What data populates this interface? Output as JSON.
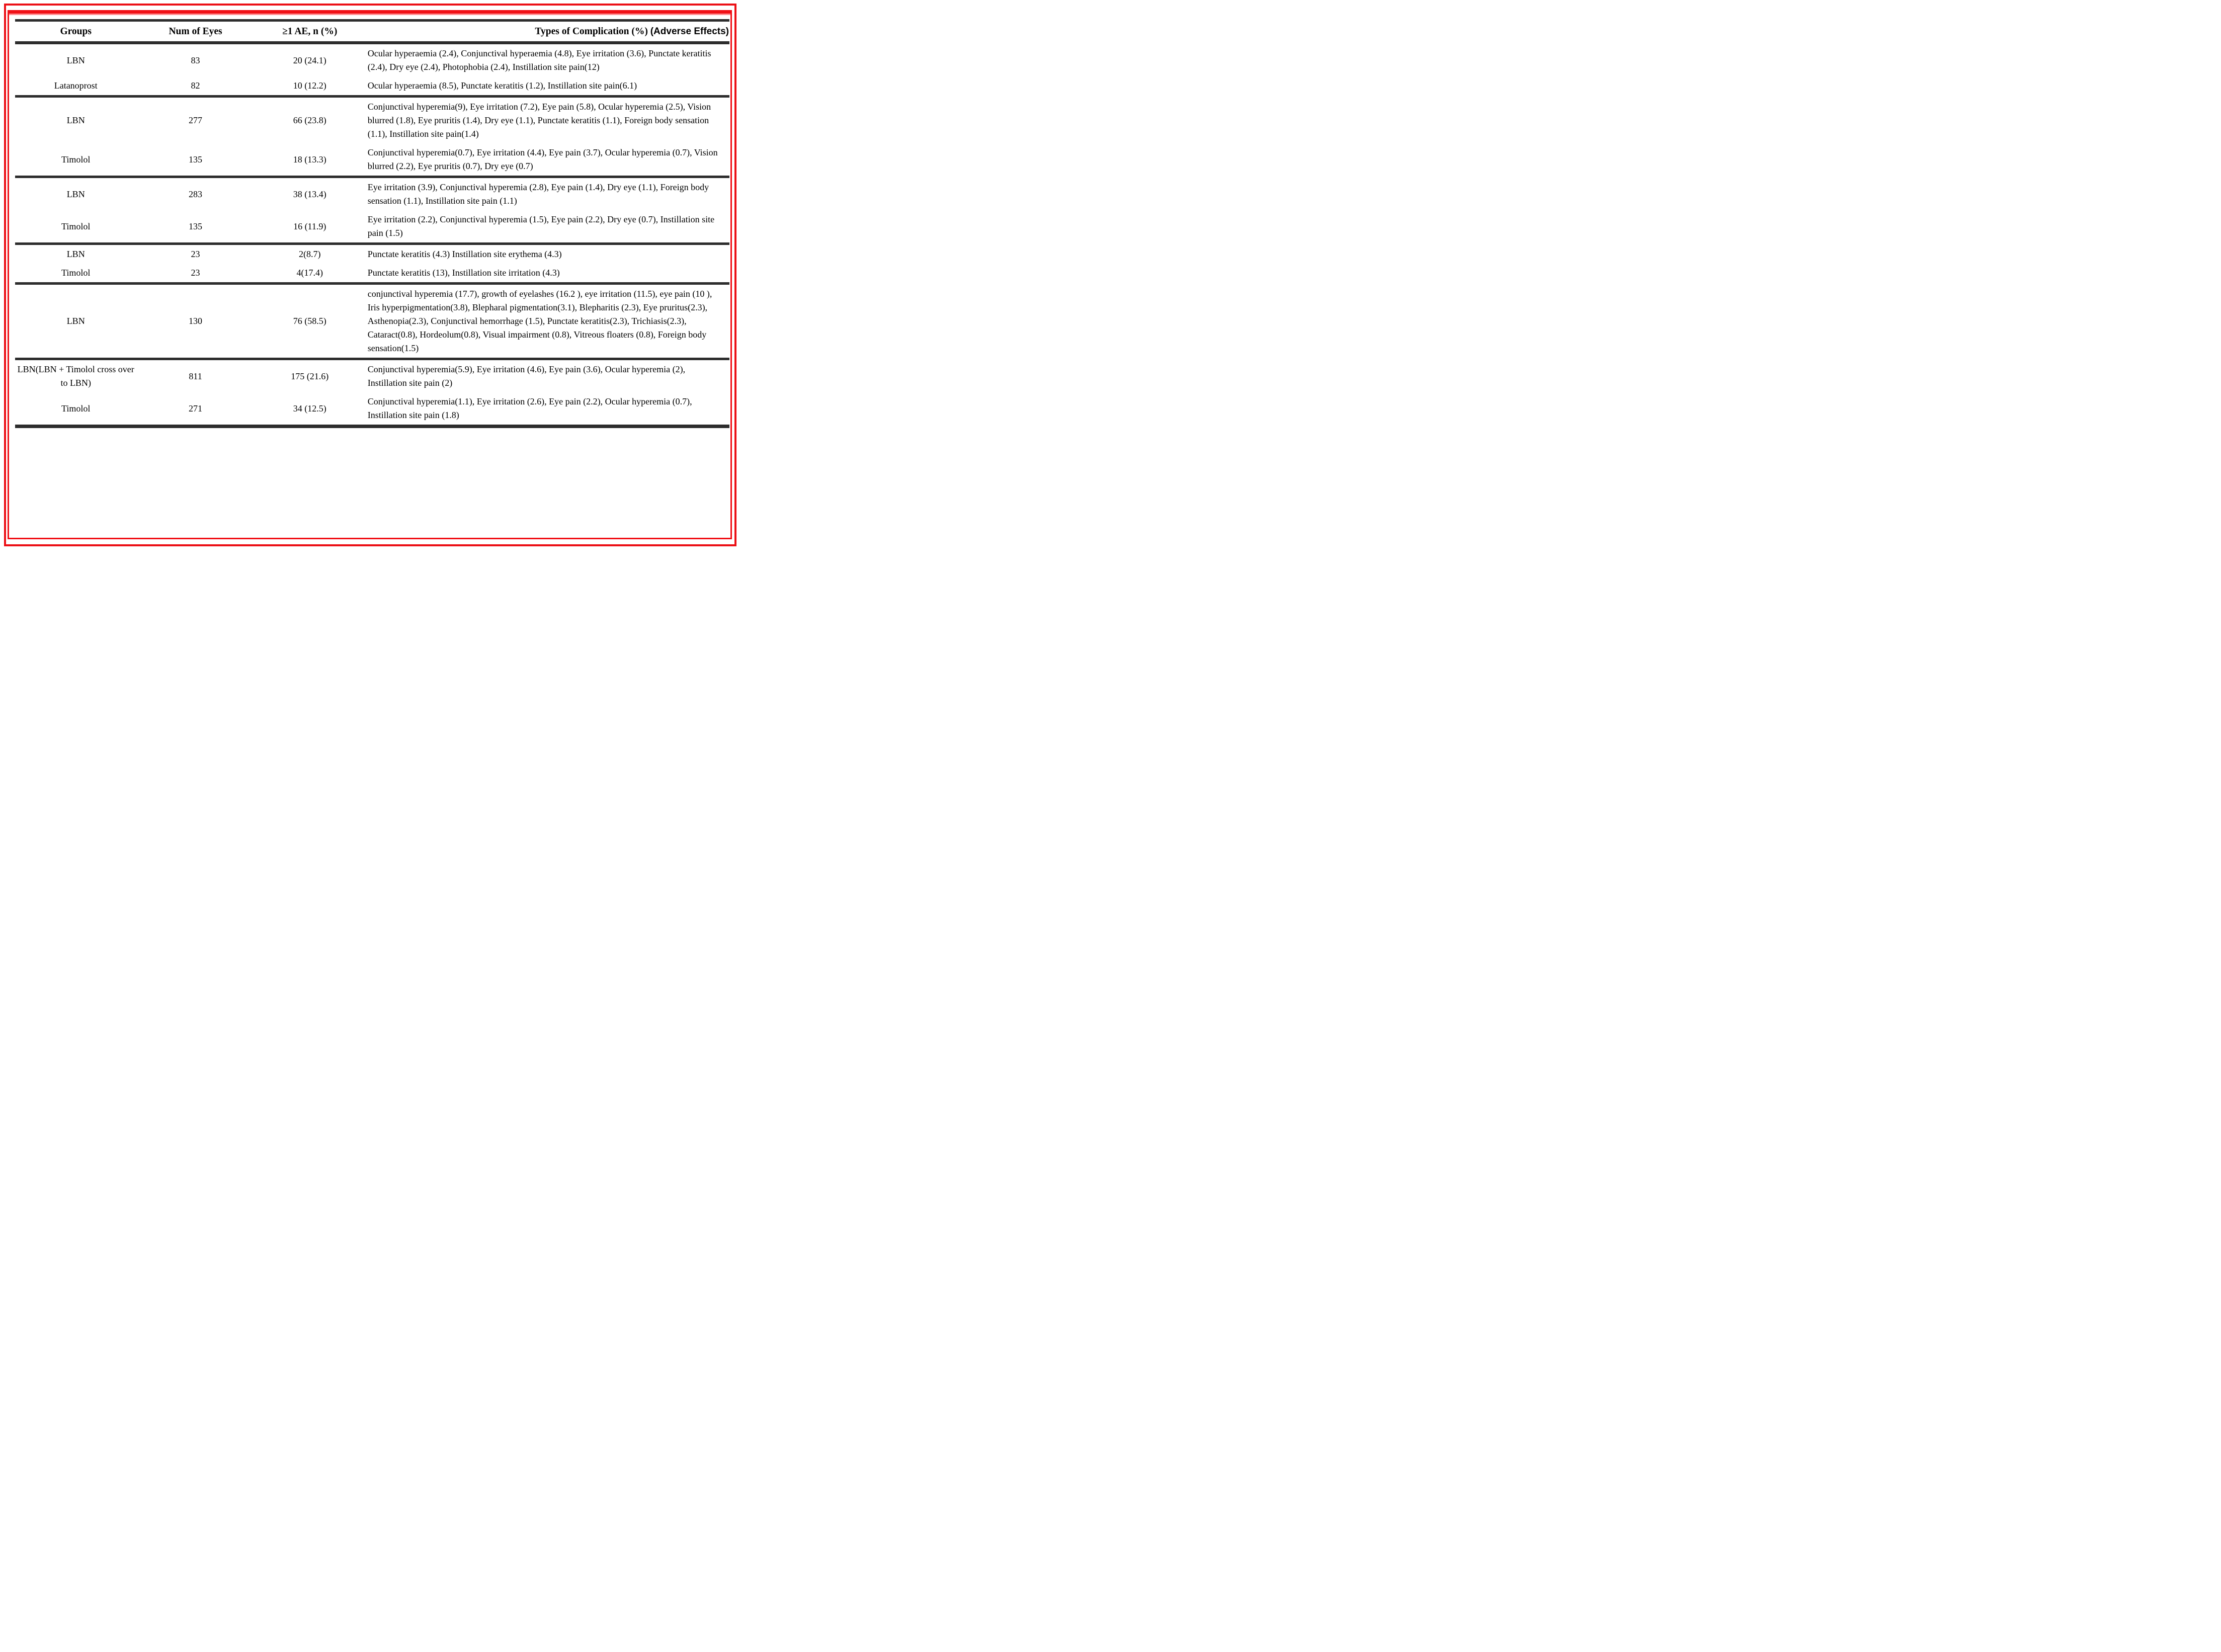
{
  "header": {
    "groups": "Groups",
    "num_of_eyes": "Num of Eyes",
    "ae": "≥1 AE, n (%)",
    "complications": "Types of Complication (%)",
    "complications_annotation": "(Adverse Effects)"
  },
  "accent_colors": {
    "frame_red": "#ec1016",
    "rule_black": "#2d2d2d"
  },
  "sections": [
    {
      "rows": [
        {
          "group": "LBN",
          "eyes": "83",
          "ae": "20 (24.1)",
          "complications": "Ocular hyperaemia (2.4), Conjunctival hyperaemia (4.8), Eye irritation (3.6), Punctate keratitis (2.4), Dry eye (2.4), Photophobia (2.4), Instillation site pain(12)"
        },
        {
          "group": "Latanoprost",
          "eyes": "82",
          "ae": "10 (12.2)",
          "complications": "Ocular hyperaemia (8.5), Punctate keratitis (1.2), Instillation site pain(6.1)"
        }
      ]
    },
    {
      "rows": [
        {
          "group": "LBN",
          "eyes": "277",
          "ae": "66 (23.8)",
          "complications": "Conjunctival hyperemia(9), Eye irritation (7.2), Eye pain (5.8), Ocular hyperemia (2.5), Vision blurred (1.8), Eye pruritis (1.4), Dry eye (1.1), Punctate keratitis (1.1), Foreign body sensation (1.1), Instillation site pain(1.4)"
        },
        {
          "group": "Timolol",
          "eyes": "135",
          "ae": "18 (13.3)",
          "complications": "Conjunctival hyperemia(0.7), Eye irritation (4.4), Eye pain (3.7), Ocular hyperemia (0.7), Vision blurred (2.2), Eye pruritis (0.7), Dry eye (0.7)"
        }
      ]
    },
    {
      "rows": [
        {
          "group": "LBN",
          "eyes": "283",
          "ae": "38 (13.4)",
          "complications": "Eye irritation (3.9), Conjunctival hyperemia (2.8), Eye pain (1.4), Dry eye (1.1), Foreign body sensation (1.1), Instillation site pain (1.1)"
        },
        {
          "group": "Timolol",
          "eyes": "135",
          "ae": "16 (11.9)",
          "complications": "Eye irritation (2.2), Conjunctival hyperemia (1.5), Eye pain (2.2), Dry eye (0.7), Instillation site pain (1.5)"
        }
      ]
    },
    {
      "rows": [
        {
          "group": "LBN",
          "eyes": "23",
          "ae": "2(8.7)",
          "complications": "Punctate keratitis (4.3) Instillation site erythema (4.3)"
        },
        {
          "group": "Timolol",
          "eyes": "23",
          "ae": "4(17.4)",
          "complications": "Punctate keratitis (13), Instillation site irritation (4.3)"
        }
      ]
    },
    {
      "rows": [
        {
          "group": "LBN",
          "eyes": "130",
          "ae": "76 (58.5)",
          "complications": "conjunctival hyperemia (17.7), growth of eyelashes (16.2 ), eye irritation (11.5), eye pain (10 ), Iris hyperpigmentation(3.8), Blepharal pigmentation(3.1), Blepharitis (2.3), Eye pruritus(2.3), Asthenopia(2.3), Conjunctival hemorrhage (1.5), Punctate keratitis(2.3), Trichiasis(2.3), Cataract(0.8), Hordeolum(0.8), Visual impairment (0.8), Vitreous floaters (0.8), Foreign body sensation(1.5)"
        }
      ]
    },
    {
      "rows": [
        {
          "group": "LBN(LBN + Timolol cross over to LBN)",
          "eyes": "811",
          "ae": "175 (21.6)",
          "complications": "Conjunctival hyperemia(5.9), Eye irritation (4.6), Eye pain (3.6), Ocular hyperemia (2), Instillation site pain (2)"
        },
        {
          "group": "Timolol",
          "eyes": "271",
          "ae": "34 (12.5)",
          "complications": "Conjunctival hyperemia(1.1), Eye irritation (2.6), Eye pain (2.2), Ocular hyperemia (0.7), Instillation site pain (1.8)"
        }
      ]
    }
  ]
}
